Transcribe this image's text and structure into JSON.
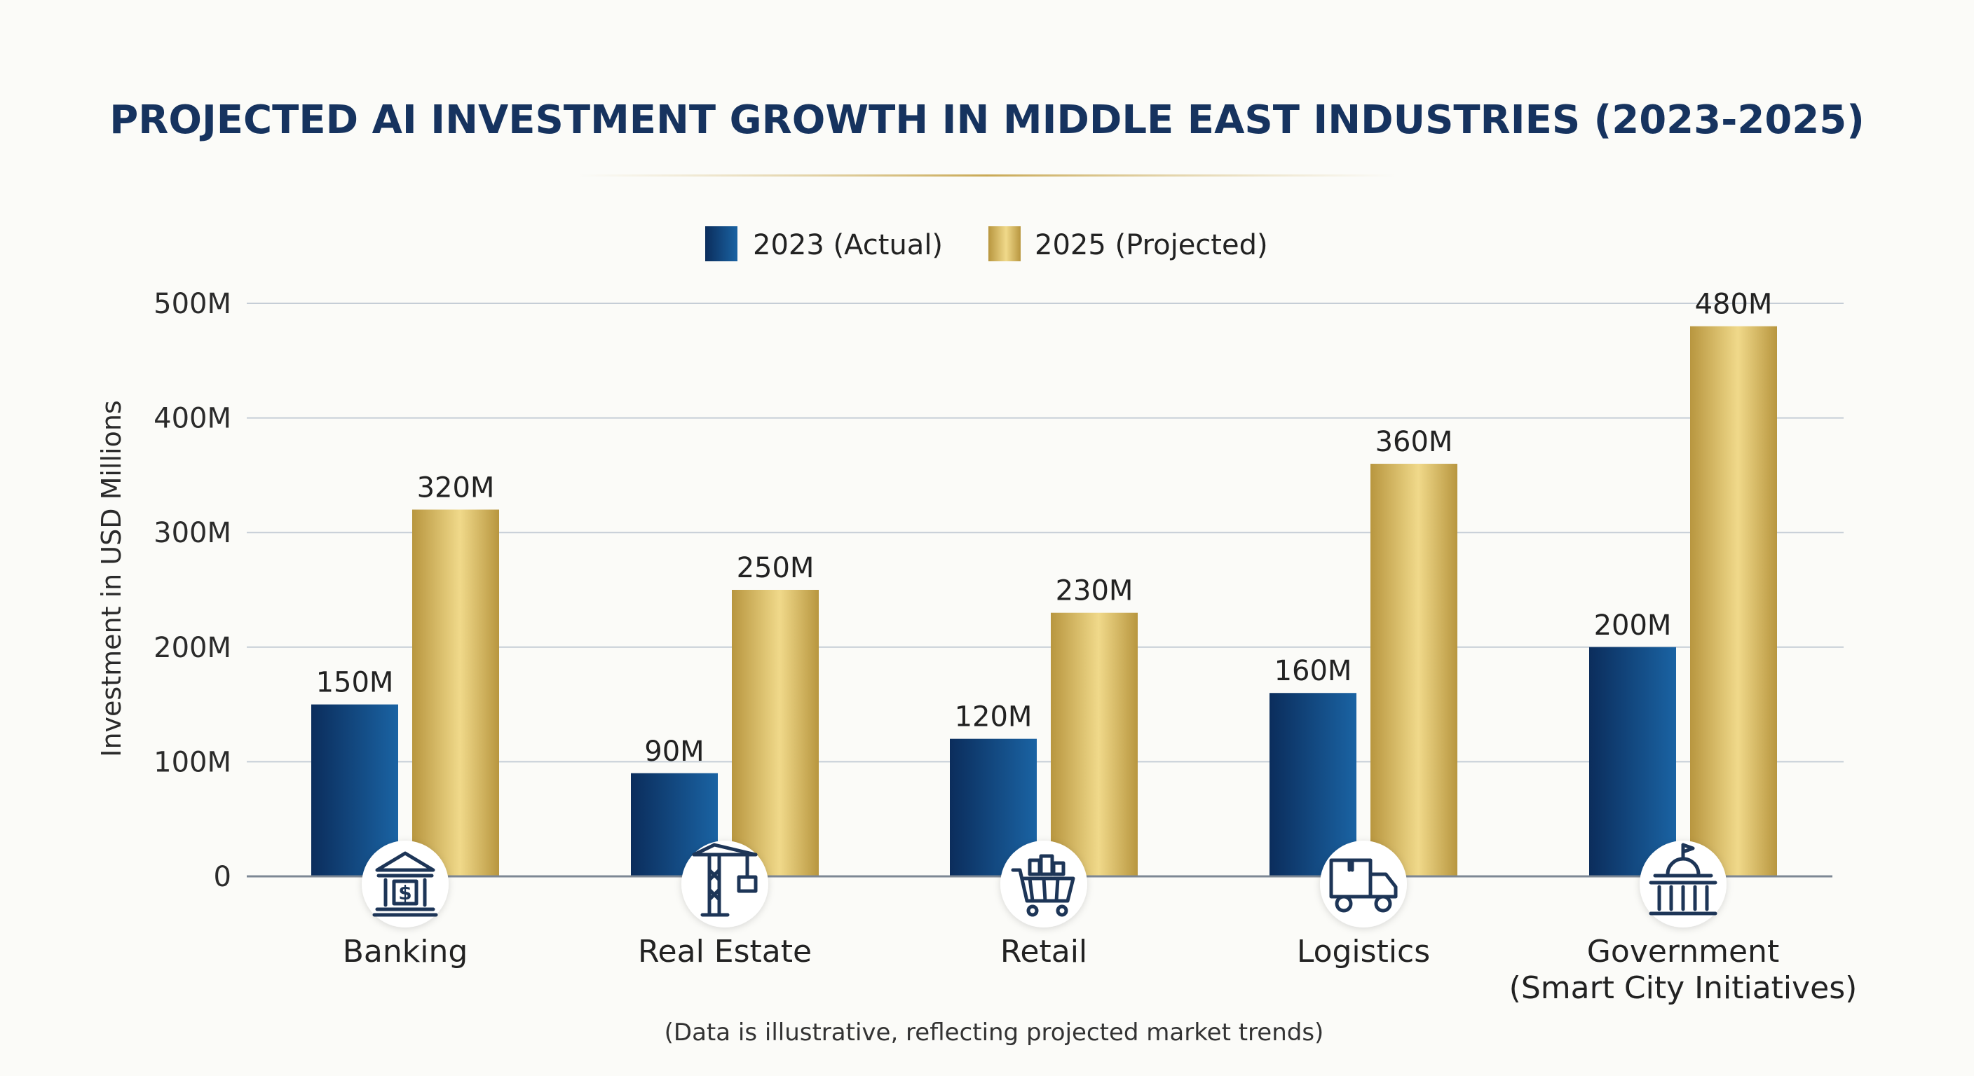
{
  "chart_data": {
    "type": "bar",
    "title": "PROJECTED AI INVESTMENT GROWTH IN MIDDLE EAST INDUSTRIES (2023-2025)",
    "ylabel": "Investment in USD Millions",
    "xlabel": "",
    "ylim": [
      0,
      500
    ],
    "yticks": [
      0,
      100,
      200,
      300,
      400,
      500
    ],
    "ytick_labels": [
      "0",
      "100M",
      "200M",
      "300M",
      "400M",
      "500M"
    ],
    "grid": true,
    "legend_position": "top-center",
    "categories": [
      {
        "label": "Banking",
        "label_line2": "",
        "icon": "bank-icon"
      },
      {
        "label": "Real Estate",
        "label_line2": "",
        "icon": "construction-crane-icon"
      },
      {
        "label": "Retail",
        "label_line2": "",
        "icon": "shopping-cart-icon"
      },
      {
        "label": "Logistics",
        "label_line2": "",
        "icon": "delivery-truck-icon"
      },
      {
        "label": "Government",
        "label_line2": "(Smart City Initiatives)",
        "icon": "government-building-icon"
      }
    ],
    "series": [
      {
        "name": "2023 (Actual)",
        "color": "#124a86",
        "values": [
          150,
          90,
          120,
          160,
          200
        ],
        "labels": [
          "150M",
          "90M",
          "120M",
          "160M",
          "200M"
        ]
      },
      {
        "name": "2025 (Projected)",
        "color": "#c9a955",
        "values": [
          320,
          250,
          230,
          360,
          480
        ],
        "labels": [
          "320M",
          "250M",
          "230M",
          "360M",
          "480M"
        ]
      }
    ],
    "footnote": "(Data is illustrative, reflecting projected market trends)"
  },
  "colors": {
    "title": "#16335f",
    "navy_dark": "#0b2d5c",
    "navy_light": "#1a63a3",
    "gold_dark": "#b8963f",
    "gold_light": "#f0d98a",
    "grid": "#c5cdd6",
    "icon": "#1d3557"
  }
}
